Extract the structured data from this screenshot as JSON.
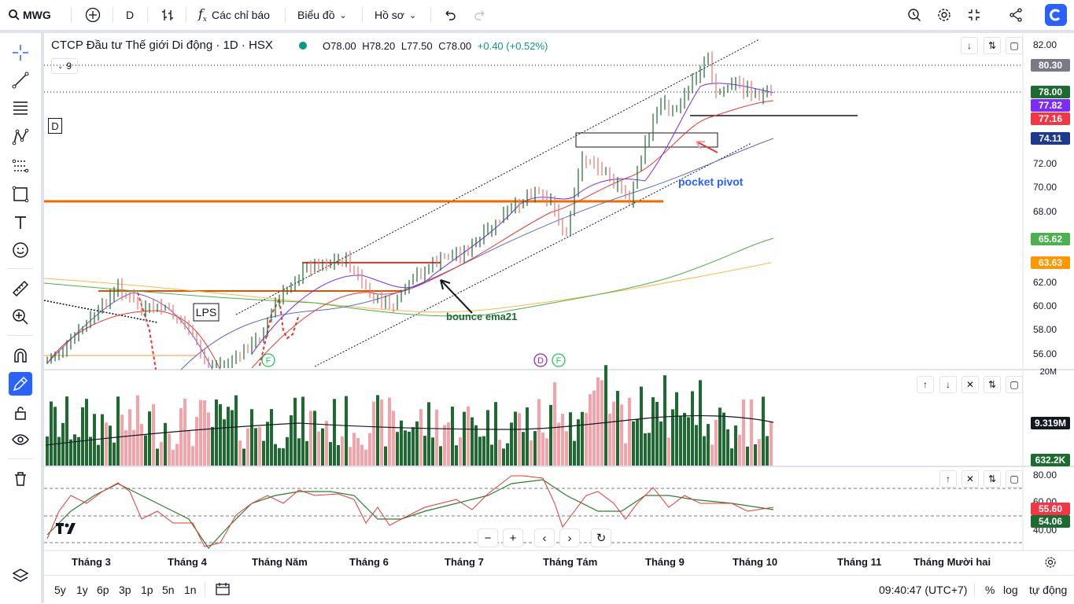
{
  "toolbar": {
    "symbol": "MWG",
    "interval": "D",
    "indicators_label": "Các chỉ báo",
    "chart_type_label": "Biểu đồ",
    "profile_label": "Hồ sơ"
  },
  "legend": {
    "title": "CTCP Đầu tư Thế giới Di động · 1D · HSX",
    "open": "O78.00",
    "high": "H78.20",
    "low": "L77.50",
    "close": "C78.00",
    "change": "+0.40 (+0.52%)",
    "collapse_count": "9",
    "badge_d": "D"
  },
  "annotations": {
    "pocket_pivot": "pocket pivot",
    "bounce": "bounce ema21",
    "lps": "LPS",
    "marker_f1": "F",
    "marker_d": "D",
    "marker_f2": "F"
  },
  "price_axis": {
    "ticks": [
      "82.00",
      "80.30",
      "78.00",
      "77.82",
      "77.16",
      "74.11",
      "72.00",
      "70.00",
      "68.00",
      "65.62",
      "63.63",
      "62.00",
      "60.00",
      "58.00",
      "56.00"
    ],
    "labels": [
      {
        "value": "80.30",
        "color": "#787b86"
      },
      {
        "value": "78.00",
        "color": "#1e6b32"
      },
      {
        "value": "77.82",
        "color": "#7b2cf5"
      },
      {
        "value": "77.16",
        "color": "#f23645"
      },
      {
        "value": "74.11",
        "color": "#1e3a8a"
      },
      {
        "value": "65.62",
        "color": "#4caf50"
      },
      {
        "value": "63.63",
        "color": "#ff9800"
      }
    ]
  },
  "volume_pane": {
    "top_tick": "20M",
    "ma_label": "9.319M",
    "vol_label": "632.2K"
  },
  "osc_pane": {
    "ticks": [
      "80.00",
      "60.00",
      "40.00"
    ],
    "val1": "55.60",
    "val2": "54.06"
  },
  "time_axis": [
    "Tháng 3",
    "Tháng 4",
    "Tháng Năm",
    "Tháng 6",
    "Tháng 7",
    "Tháng Tám",
    "Tháng 9",
    "Tháng 10",
    "Tháng 11",
    "Tháng Mười hai"
  ],
  "bottom": {
    "ranges": [
      "5y",
      "1y",
      "6p",
      "3p",
      "1p",
      "5n",
      "1n"
    ],
    "clock": "09:40:47 (UTC+7)",
    "percent": "%",
    "log": "log",
    "auto": "tự động"
  },
  "colors": {
    "up": "#1e6b32",
    "down": "#f7a1a8",
    "accent": "#2962ff"
  }
}
